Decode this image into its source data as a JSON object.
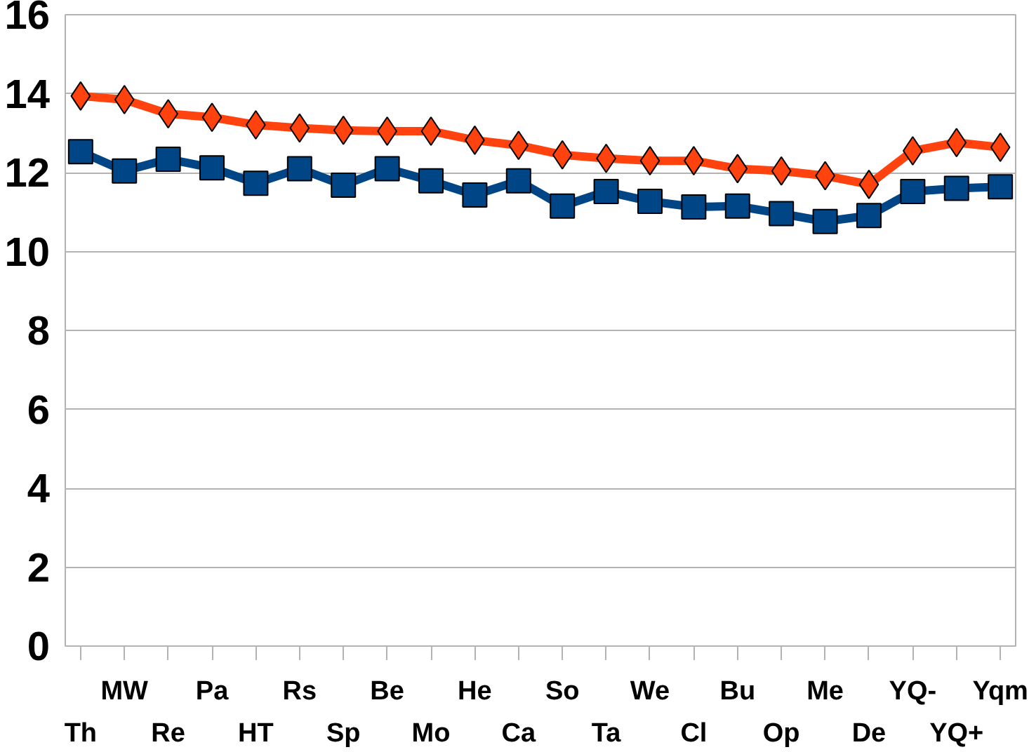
{
  "chart_data": {
    "type": "line",
    "categories": [
      "Th",
      "MW",
      "Re",
      "Pa",
      "HT",
      "Rs",
      "Sp",
      "Be",
      "Mo",
      "He",
      "Ca",
      "So",
      "Ta",
      "We",
      "Cl",
      "Bu",
      "Op",
      "Me",
      "De",
      "YQ-",
      "YQ+",
      "Yqm"
    ],
    "series": [
      {
        "color": "#ff420e",
        "marker": "diamond",
        "values": [
          13.94,
          13.85,
          13.49,
          13.4,
          13.21,
          13.13,
          13.07,
          13.05,
          13.05,
          12.82,
          12.69,
          12.45,
          12.36,
          12.3,
          12.3,
          12.1,
          12.04,
          11.92,
          11.7,
          12.55,
          12.76,
          12.64
        ]
      },
      {
        "color": "#004586",
        "marker": "square",
        "values": [
          12.53,
          12.04,
          12.34,
          12.12,
          11.73,
          12.1,
          11.68,
          12.1,
          11.79,
          11.43,
          11.79,
          11.15,
          11.52,
          11.27,
          11.13,
          11.15,
          10.96,
          10.76,
          10.91,
          11.52,
          11.6,
          11.64
        ]
      }
    ],
    "ylim": [
      0,
      16
    ],
    "yticks": [
      0,
      2,
      4,
      6,
      8,
      10,
      12,
      14,
      16
    ],
    "grid": "y",
    "line_style": "solid"
  }
}
